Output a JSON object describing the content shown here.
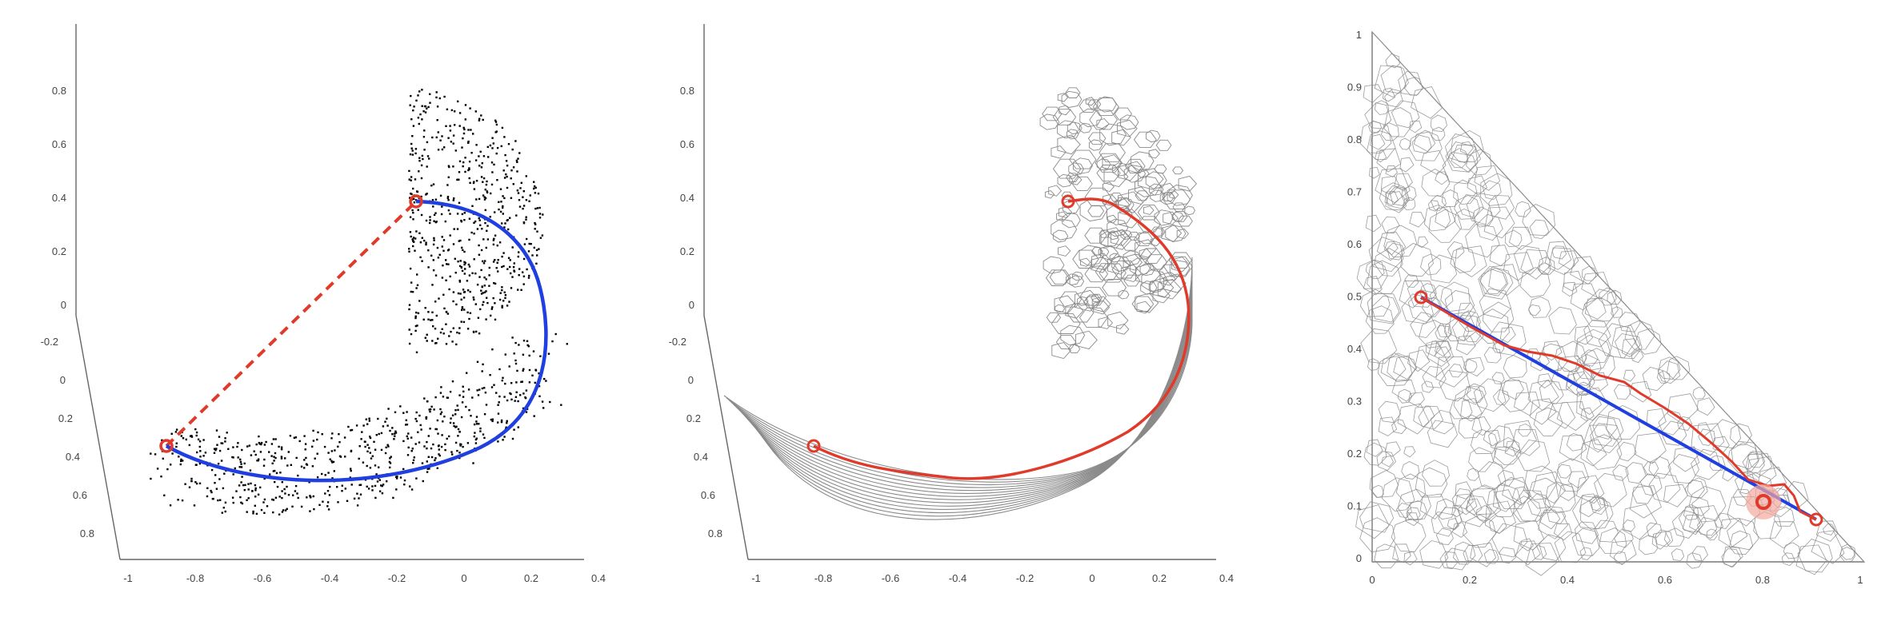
{
  "panels": [
    {
      "id": "point-cloud-geodesic",
      "z_ticks": [
        "0.8",
        "0.6",
        "0.4",
        "0.2",
        "0"
      ],
      "y_ticks": [
        "-0.2",
        "0",
        "0.2",
        "0.4",
        "0.6",
        "0.8"
      ],
      "x_ticks": [
        "-1",
        "-0.8",
        "-0.6",
        "-0.4",
        "-0.2",
        "0",
        "0.2",
        "0.4"
      ],
      "point_color": "#000000",
      "curve_color": "#1f3fe0",
      "chord_color": "#e03a2a",
      "endpoint_color": "#e03a2a"
    },
    {
      "id": "mesh-geodesic",
      "z_ticks": [
        "0.8",
        "0.6",
        "0.4",
        "0.2",
        "0"
      ],
      "y_ticks": [
        "-0.2",
        "0",
        "0.2",
        "0.4",
        "0.6",
        "0.8"
      ],
      "x_ticks": [
        "-1",
        "-0.8",
        "-0.6",
        "-0.4",
        "-0.2",
        "0",
        "0.2",
        "0.4"
      ],
      "mesh_color": "#8a8a8a",
      "path_color": "#e03a2a"
    },
    {
      "id": "planar-triangle-geodesic",
      "y_ticks": [
        "1",
        "0.9",
        "0.8",
        "0.7",
        "0.6",
        "0.5",
        "0.4",
        "0.3",
        "0.2",
        "0.1",
        "0"
      ],
      "x_ticks": [
        "0",
        "0.2",
        "0.4",
        "0.6",
        "0.8",
        "1"
      ],
      "mesh_color": "#8a8a8a",
      "straight_color": "#1f3fe0",
      "path_color": "#e03a2a"
    }
  ]
}
